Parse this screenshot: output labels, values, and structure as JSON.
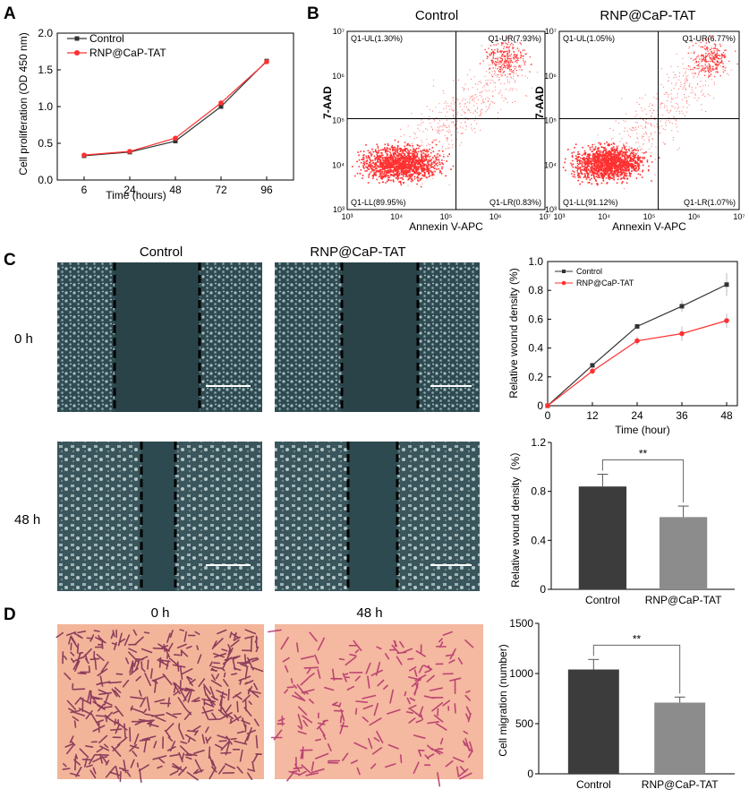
{
  "panels": {
    "A": "A",
    "B": "B",
    "C": "C",
    "D": "D"
  },
  "colors": {
    "control": "#333333",
    "rnp": "#ff3030",
    "bar_dark": "#3c3c3c",
    "bar_light": "#8c8c8c",
    "flow": "#ff1a1a",
    "scratch": "#2e4a50",
    "stain_bg": "#f3b59a",
    "stain_cell": "#8a2a5a"
  },
  "chart_data": [
    {
      "id": "A",
      "type": "line",
      "x": [
        "6",
        "24",
        "48",
        "72",
        "96"
      ],
      "series": [
        {
          "name": "Control",
          "values": [
            0.33,
            0.38,
            0.53,
            1.0,
            1.62
          ]
        },
        {
          "name": "RNP@CaP-TAT",
          "values": [
            0.34,
            0.39,
            0.57,
            1.05,
            1.61
          ]
        }
      ],
      "xlabel": "Time (hours)",
      "ylabel": "Cell proliferation (OD 450 nm)",
      "ylim": [
        0,
        2.0
      ],
      "yticks": [
        "0.0",
        "0.5",
        "1.0",
        "1.5",
        "2.0"
      ]
    },
    {
      "id": "B",
      "type": "scatter",
      "plots": [
        {
          "title": "Control",
          "UL": "Q1-UL(1.30%)",
          "UR": "Q1-UR(7.93%)",
          "LL": "Q1-LL(89.95%)",
          "LR": "Q1-LR(0.83%)"
        },
        {
          "title": "RNP@CaP-TAT",
          "UL": "Q1-UL(1.05%)",
          "UR": "Q1-UR(6.77%)",
          "LL": "Q1-LL(91.12%)",
          "LR": "Q1-LR(1.07%)"
        }
      ],
      "xlabel": "Annexin V-APC",
      "ylabel": "7-AAD",
      "xticks": [
        "10³",
        "10⁴",
        "10⁵",
        "10⁶",
        "10⁷"
      ],
      "yticks": [
        "10³",
        "10⁴",
        "10⁵",
        "10⁶",
        "10⁷"
      ]
    },
    {
      "id": "C-line",
      "type": "line",
      "x": [
        "0",
        "12",
        "24",
        "36",
        "48"
      ],
      "series": [
        {
          "name": "Control",
          "values": [
            0,
            0.28,
            0.55,
            0.69,
            0.84
          ]
        },
        {
          "name": "RNP@CaP-TAT",
          "values": [
            0,
            0.24,
            0.45,
            0.5,
            0.59
          ]
        }
      ],
      "xlabel": "Time (hour)",
      "ylabel": "Relative wound density (%)",
      "ylim": [
        0,
        1.0
      ],
      "yticks": [
        "0",
        "0.2",
        "0.4",
        "0.6",
        "0.8",
        "1.0"
      ]
    },
    {
      "id": "C-bar",
      "type": "bar",
      "categories": [
        "Control",
        "RNP@CaP-TAT"
      ],
      "values": [
        0.84,
        0.59
      ],
      "errors": [
        0.1,
        0.09
      ],
      "ylabel": "Relative wound density（%）",
      "ylim": [
        0,
        1.2
      ],
      "yticks": [
        "0",
        "0.4",
        "0.8",
        "1.2"
      ],
      "significance": "**"
    },
    {
      "id": "D-bar",
      "type": "bar",
      "categories": [
        "Control",
        "RNP@CaP-TAT"
      ],
      "values": [
        1040,
        710
      ],
      "errors": [
        100,
        55
      ],
      "ylabel": "Cell migration (number)",
      "ylim": [
        0,
        1500
      ],
      "yticks": [
        "0",
        "500",
        "1000",
        "1500"
      ],
      "significance": "**"
    }
  ],
  "scratch": {
    "col_titles": [
      "Control",
      "RNP@CaP-TAT"
    ],
    "rows": [
      "0 h",
      "48 h"
    ]
  },
  "transwell": {
    "col_titles": [
      "0 h",
      "48 h"
    ]
  }
}
